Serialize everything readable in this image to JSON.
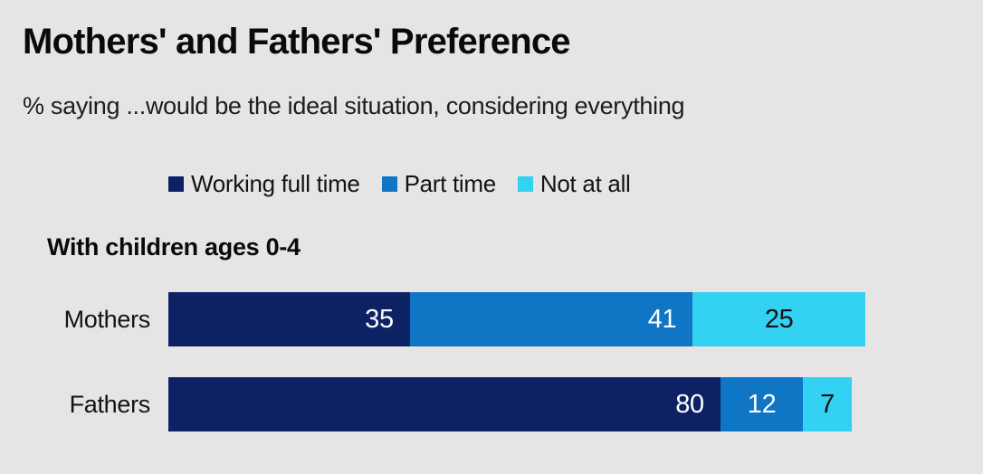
{
  "page": {
    "background": "#e6e4e4"
  },
  "header": {
    "title": "Mothers' and Fathers' Preference",
    "subtitle": "%  saying ...would be the ideal situation, considering everything"
  },
  "section": {
    "label": "With children ages 0-4"
  },
  "chart_data": {
    "type": "bar",
    "orientation": "horizontal",
    "stacked": true,
    "unit": "percent",
    "title": "Mothers' and Fathers' Preference",
    "subtitle": "%  saying ...would be the ideal situation, considering everything",
    "group_label": "With children ages 0-4",
    "categories": [
      "Mothers",
      "Fathers"
    ],
    "series": [
      {
        "name": "Working full time",
        "color": "#0d2264",
        "label_color": "#ffffff",
        "values": [
          35,
          80
        ]
      },
      {
        "name": "Part time",
        "color": "#0e76c4",
        "label_color": "#ffffff",
        "values": [
          41,
          12
        ]
      },
      {
        "name": "Not at all",
        "color": "#33d1f2",
        "label_color": "#111111",
        "values": [
          25,
          7
        ]
      }
    ],
    "legend_position": "top",
    "grid": false,
    "axis_visible": false
  }
}
